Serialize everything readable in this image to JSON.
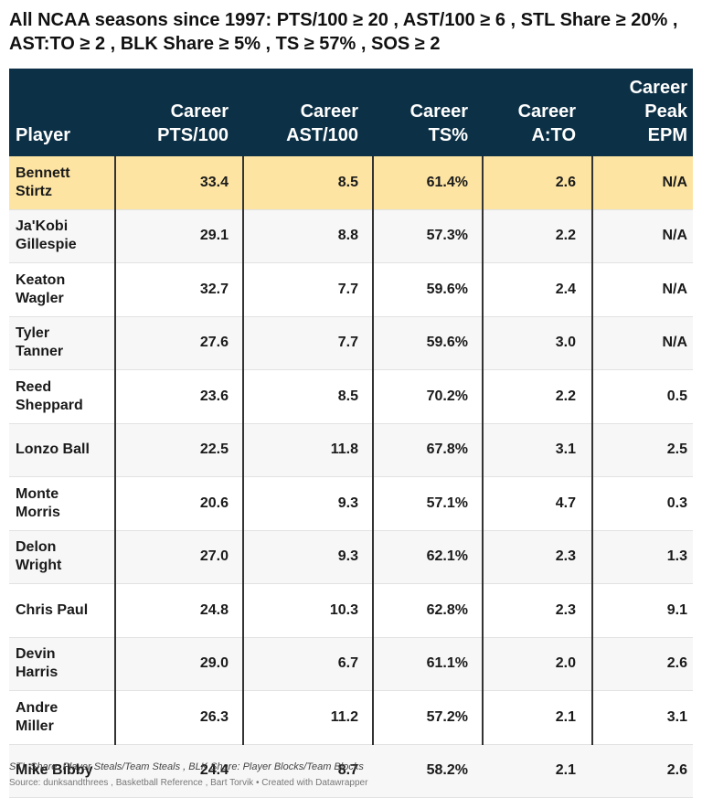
{
  "title": "All NCAA seasons since 1997: PTS/100 ≥ 20 , AST/100 ≥ 6 , STL Share ≥ 20% , AST:TO ≥ 2 , BLK Share ≥ 5% , TS ≥ 57% , SOS ≥ 2",
  "columns": [
    "Player",
    "Career\nPTS/100",
    "Career\nAST/100",
    "Career\nTS%",
    "Career\nA:TO",
    "Career\nPeak\nEPM"
  ],
  "colors": {
    "header_bg": "#0c3046",
    "highlight": "#fde4a3",
    "alt_row": "#f7f7f7"
  },
  "chart_data": {
    "type": "table",
    "columns": [
      "Player",
      "Career PTS/100",
      "Career AST/100",
      "Career TS%",
      "Career A:TO",
      "Career Peak EPM"
    ],
    "rows": [
      [
        "Bennett\nStirtz",
        "33.4",
        "8.5",
        "61.4%",
        "2.6",
        "N/A"
      ],
      [
        "Ja'Kobi\nGillespie",
        "29.1",
        "8.8",
        "57.3%",
        "2.2",
        "N/A"
      ],
      [
        "Keaton\nWagler",
        "32.7",
        "7.7",
        "59.6%",
        "2.4",
        "N/A"
      ],
      [
        "Tyler\nTanner",
        "27.6",
        "7.7",
        "59.6%",
        "3.0",
        "N/A"
      ],
      [
        "Reed\nSheppard",
        "23.6",
        "8.5",
        "70.2%",
        "2.2",
        "0.5"
      ],
      [
        "Lonzo Ball",
        "22.5",
        "11.8",
        "67.8%",
        "3.1",
        "2.5"
      ],
      [
        "Monte\nMorris",
        "20.6",
        "9.3",
        "57.1%",
        "4.7",
        "0.3"
      ],
      [
        "Delon\nWright",
        "27.0",
        "9.3",
        "62.1%",
        "2.3",
        "1.3"
      ],
      [
        "Chris Paul",
        "24.8",
        "10.3",
        "62.8%",
        "2.3",
        "9.1"
      ],
      [
        "Devin\nHarris",
        "29.0",
        "6.7",
        "61.1%",
        "2.0",
        "2.6"
      ],
      [
        "Andre\nMiller",
        "26.3",
        "11.2",
        "57.2%",
        "2.1",
        "3.1"
      ],
      [
        "Mike Bibby",
        "24.4",
        "8.7",
        "58.2%",
        "2.1",
        "2.6"
      ]
    ],
    "highlighted_row": 0
  },
  "notes": "STL Share: Player Steals/Team Steals , BLK Share: Player Blocks/Team Blocks",
  "source": "Source: dunksandthrees , Basketball Reference , Bart Torvik • Created with Datawrapper"
}
